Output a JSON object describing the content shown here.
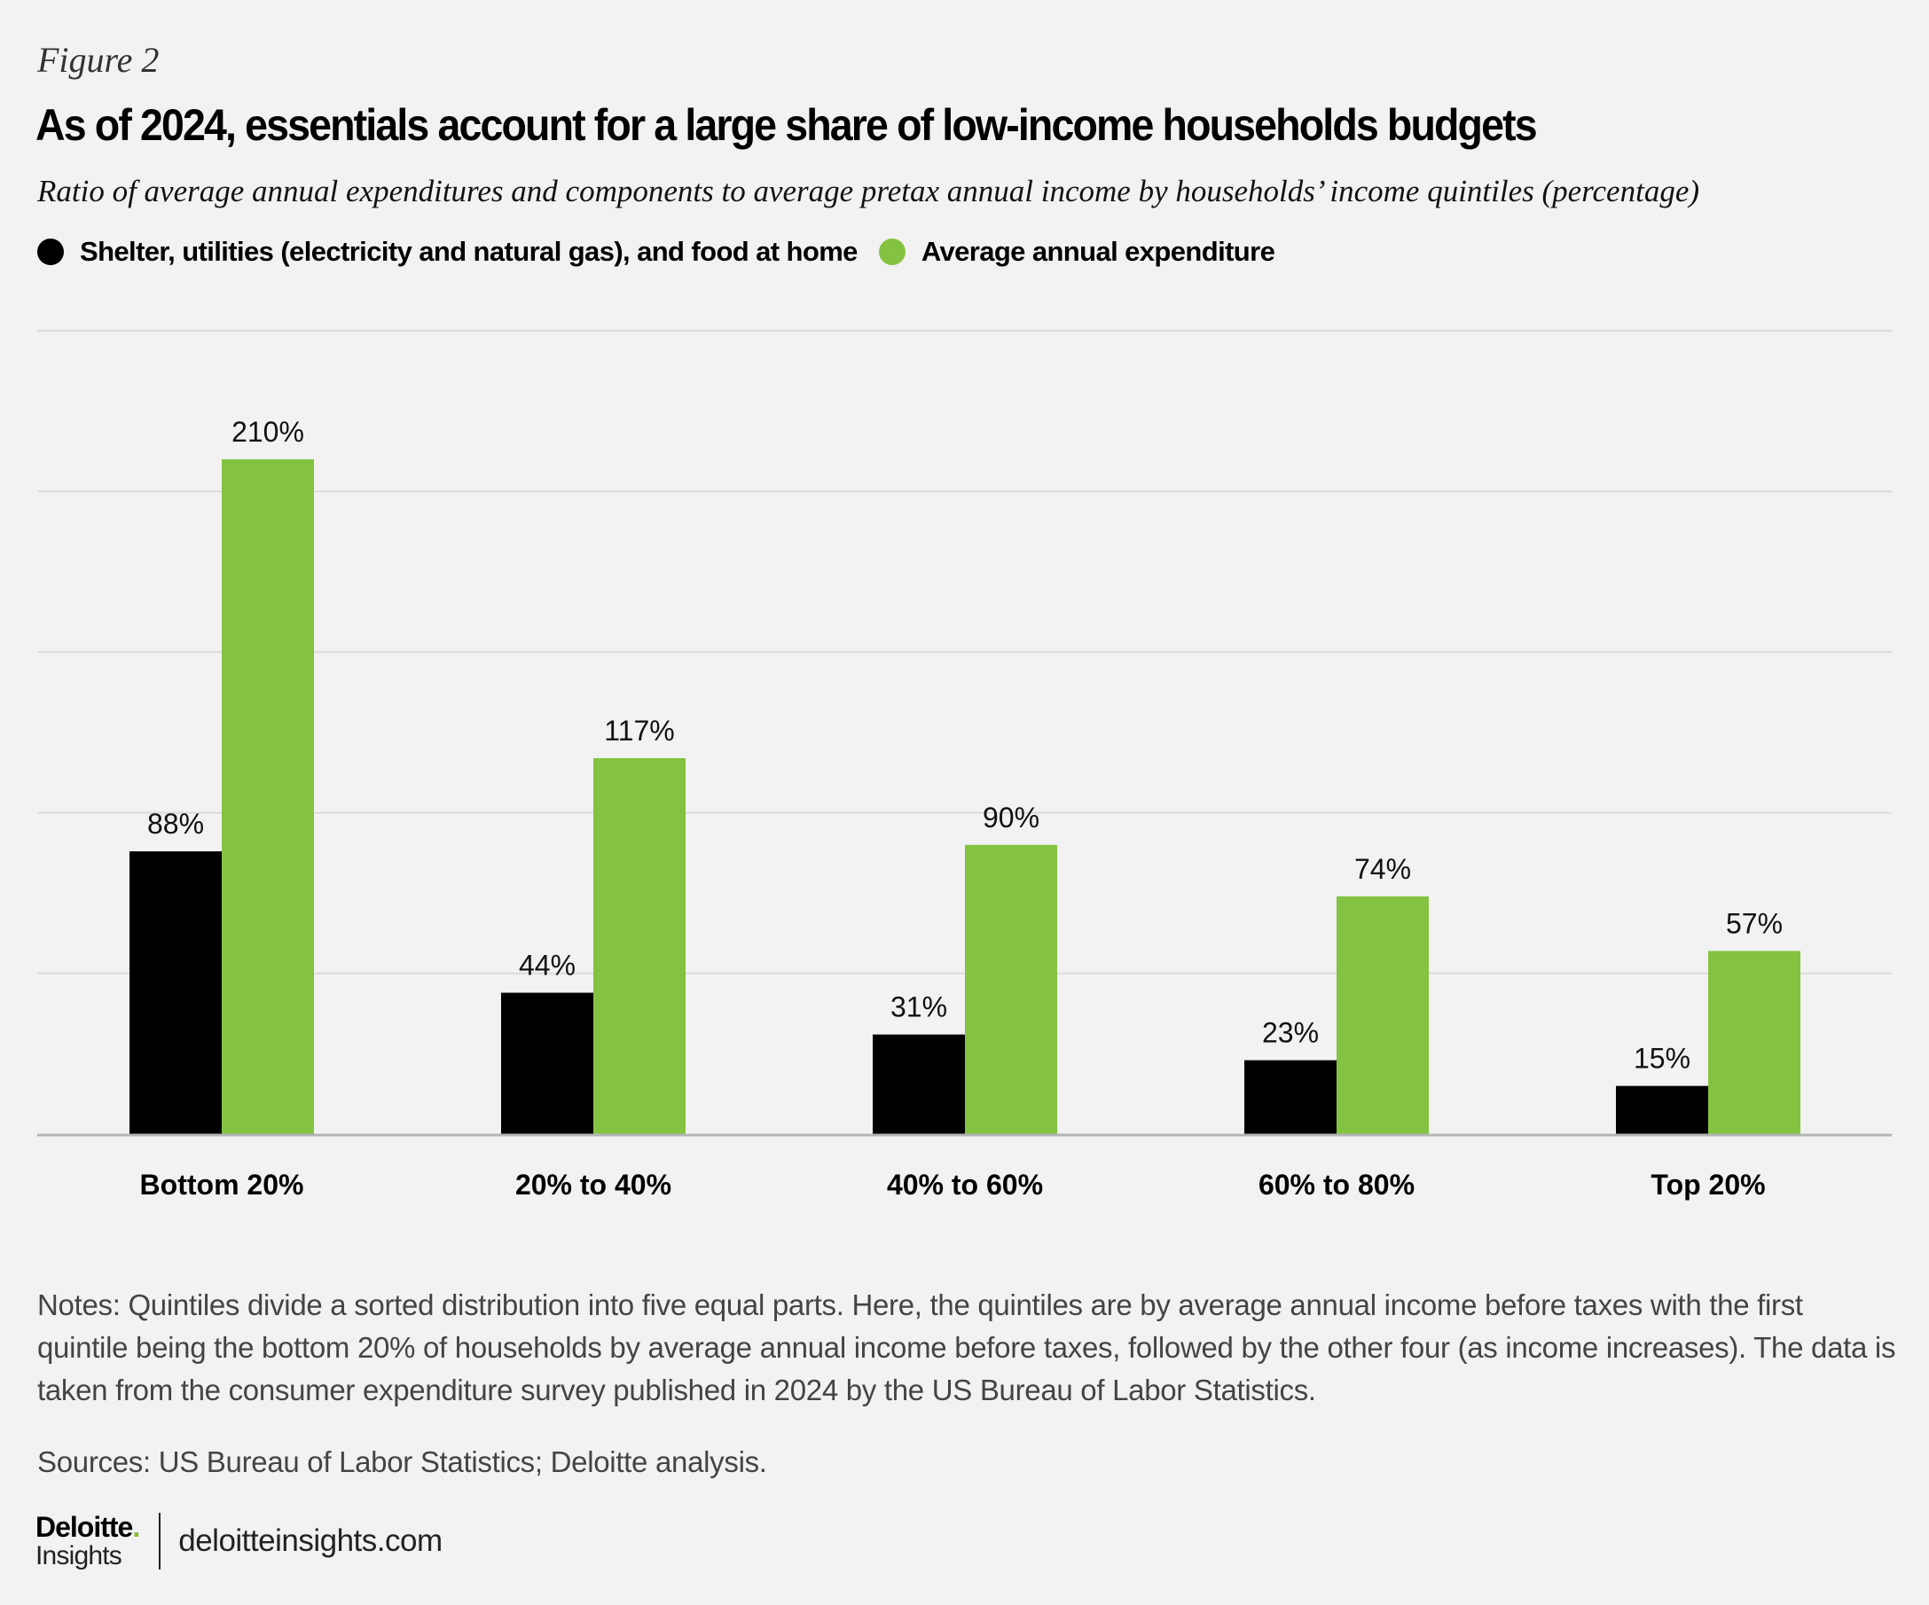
{
  "figure_label": "Figure 2",
  "title": "As of 2024, essentials account for a large share of low-income households budgets",
  "subtitle": "Ratio of average annual expenditures and components to average pretax annual income by households’ income quintiles (percentage)",
  "legend": [
    {
      "label": "Shelter, utilities (electricity and natural gas), and food at home",
      "color": "#000000"
    },
    {
      "label": "Average annual expenditure",
      "color": "#84c341"
    }
  ],
  "notes": "Notes: Quintiles divide a sorted distribution into five equal parts. Here, the quintiles are by average annual income before taxes with the first quintile being the bottom 20% of households by average annual income before taxes, followed by the other four (as income increases). The data is taken from the consumer expenditure survey published in 2024 by the US Bureau of Labor Statistics.",
  "sources": "Sources: US Bureau of Labor Statistics; Deloitte analysis.",
  "footer": {
    "logo_top": "Deloitte",
    "logo_dot": ".",
    "logo_bottom": "Insights",
    "site": "deloitteinsights.com"
  },
  "chart_data": {
    "type": "bar",
    "title": "As of 2024, essentials account for a large share of low-income households budgets",
    "subtitle": "Ratio of average annual expenditures and components to average pretax annual income by households’ income quintiles (percentage)",
    "xlabel": "",
    "ylabel": "",
    "categories": [
      "Bottom 20%",
      "20% to 40%",
      "40% to 60%",
      "60% to 80%",
      "Top 20%"
    ],
    "series": [
      {
        "name": "Shelter, utilities (electricity and natural gas), and food at home",
        "color": "#000000",
        "values": [
          88,
          44,
          31,
          23,
          15
        ]
      },
      {
        "name": "Average annual expenditure",
        "color": "#84c341",
        "values": [
          210,
          117,
          90,
          74,
          57
        ]
      }
    ],
    "value_suffix": "%",
    "ylim": [
      0,
      250
    ],
    "gridlines": [
      50,
      100,
      150,
      200,
      250
    ],
    "grid": true,
    "y_tick_labels_shown": false,
    "legend_position": "top-left",
    "gridline_color": "#d9dbda",
    "baseline_color": "#b3b5b4"
  }
}
